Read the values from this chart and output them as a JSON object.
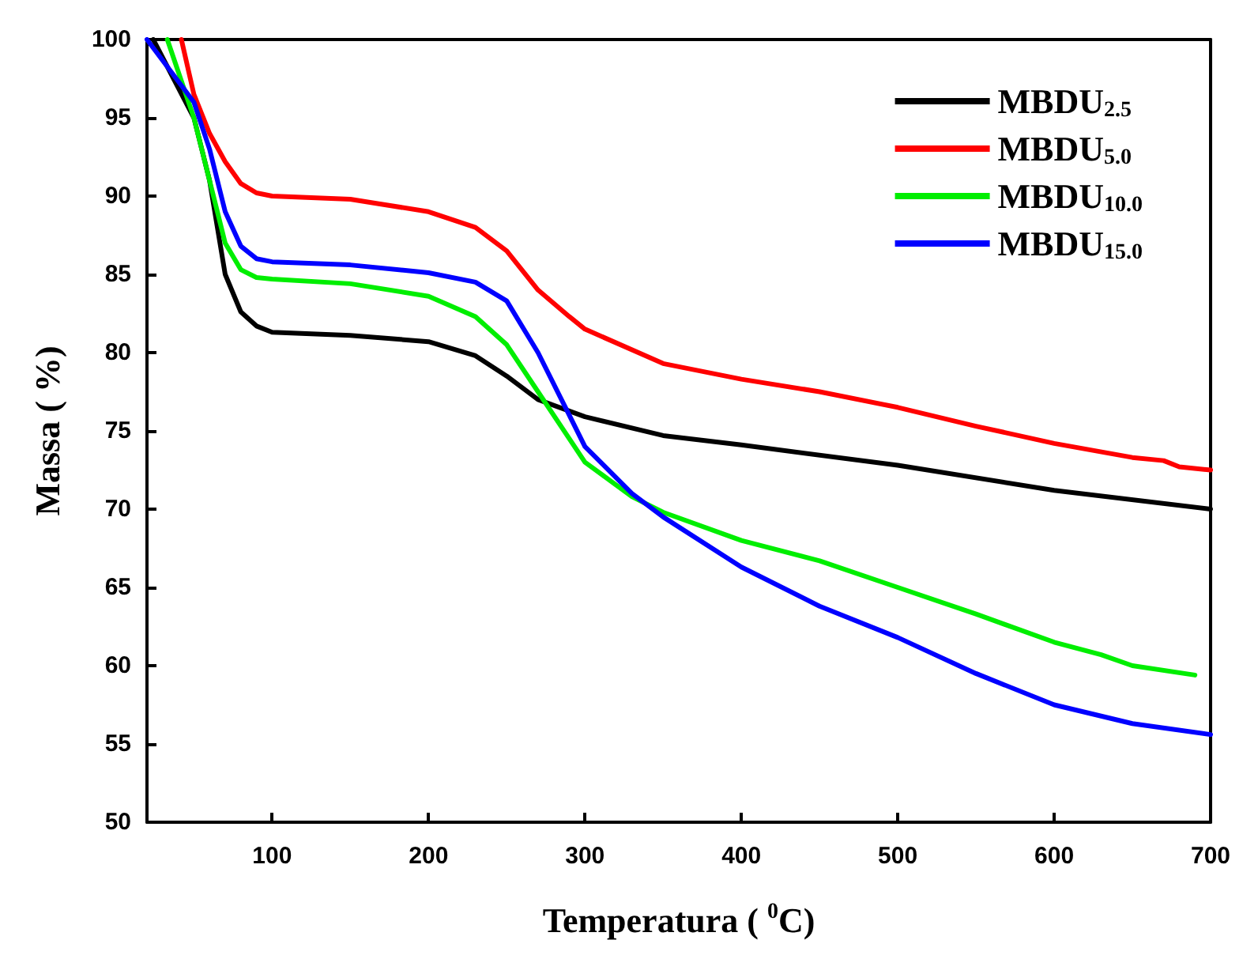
{
  "chart_data": {
    "type": "line",
    "xlabel": "Temperatura ( $^{0}$C)",
    "ylabel": "Massa ( %)",
    "xlim": [
      20,
      700
    ],
    "xticks": [
      100,
      200,
      300,
      400,
      500,
      600,
      700
    ],
    "ylim": [
      50,
      100
    ],
    "yticks": [
      50,
      55,
      60,
      65,
      70,
      75,
      80,
      85,
      90,
      95,
      100
    ],
    "grid": false,
    "legend": "top right",
    "marker": "none",
    "line_style": "solid",
    "series": [
      {
        "name": "MBDU$_{2.5}$",
        "color": "#000000",
        "x": [
          24,
          50,
          60,
          70,
          80,
          90,
          100,
          150,
          200,
          230,
          250,
          270,
          300,
          350,
          400,
          500,
          600,
          700
        ],
        "values": [
          100,
          95,
          91,
          85,
          82.6,
          81.7,
          81.3,
          81.1,
          80.7,
          79.8,
          78.5,
          77,
          75.9,
          74.7,
          74.1,
          72.8,
          71.2,
          70
        ]
      },
      {
        "name": "MBDU$_{5.0}$",
        "color": "#ff0000",
        "x": [
          42,
          50,
          60,
          70,
          80,
          90,
          100,
          150,
          200,
          230,
          250,
          270,
          290,
          300,
          350,
          400,
          450,
          500,
          550,
          600,
          650,
          670,
          680,
          700
        ],
        "values": [
          100,
          96.5,
          94,
          92.2,
          90.8,
          90.2,
          90,
          89.8,
          89,
          88,
          86.5,
          84,
          82.3,
          81.5,
          79.3,
          78.3,
          77.5,
          76.5,
          75.3,
          74.2,
          73.3,
          73.1,
          72.7,
          72.5
        ]
      },
      {
        "name": "MBDU$_{10.0}$",
        "color": "#00ee00",
        "x": [
          33,
          50,
          60,
          70,
          80,
          90,
          100,
          150,
          200,
          230,
          250,
          270,
          290,
          300,
          330,
          350,
          400,
          450,
          500,
          550,
          600,
          630,
          650,
          690
        ],
        "values": [
          100,
          95,
          91,
          87,
          85.3,
          84.8,
          84.7,
          84.4,
          83.6,
          82.3,
          80.5,
          77.5,
          74.5,
          73,
          70.8,
          69.8,
          68,
          66.7,
          65,
          63.3,
          61.5,
          60.7,
          60,
          59.4
        ]
      },
      {
        "name": "MBDU$_{15.0}$",
        "color": "#0000ff",
        "x": [
          20,
          50,
          60,
          70,
          80,
          90,
          100,
          150,
          200,
          230,
          250,
          270,
          290,
          300,
          330,
          350,
          400,
          450,
          500,
          550,
          600,
          650,
          700
        ],
        "values": [
          100,
          96,
          93,
          89,
          86.8,
          86,
          85.8,
          85.6,
          85.1,
          84.5,
          83.3,
          80,
          76,
          74,
          71,
          69.5,
          66.3,
          63.8,
          61.8,
          59.5,
          57.5,
          56.3,
          55.6
        ]
      }
    ]
  }
}
